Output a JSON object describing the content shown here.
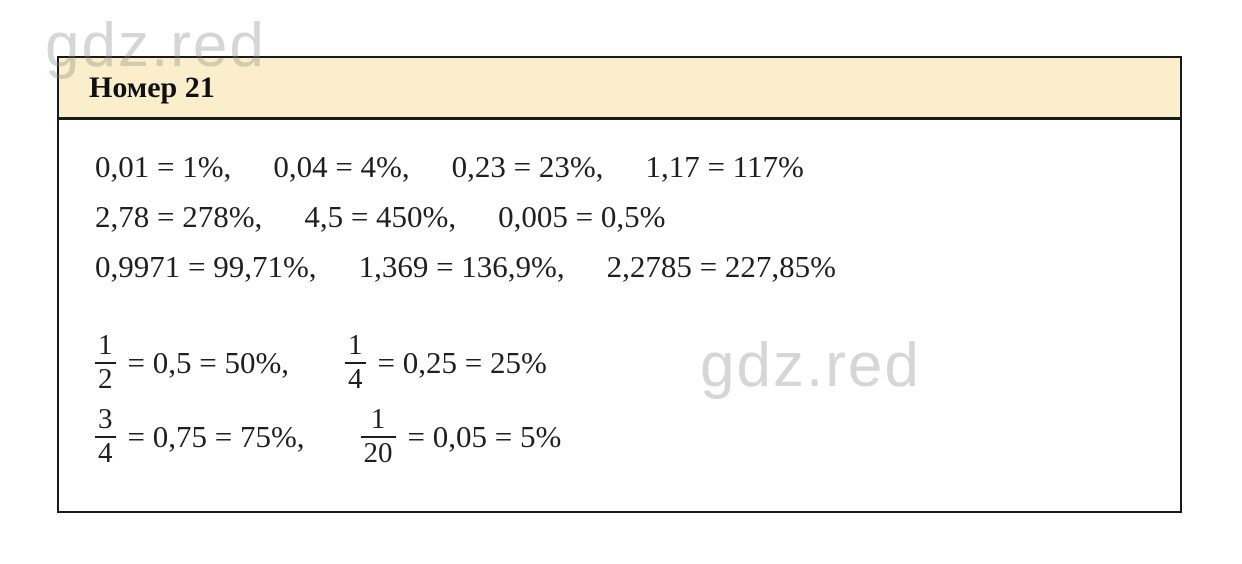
{
  "watermark": {
    "text": "gdz.red",
    "color": "#d6d6d6"
  },
  "card": {
    "header": {
      "title": "Номер 21",
      "background": "#fbeecb"
    },
    "lines": [
      [
        "0,01 = 1%,",
        "0,04 = 4%,",
        "0,23 = 23%,",
        "1,17 = 117%"
      ],
      [
        "2,78 = 278%,",
        "4,5 = 450%,",
        "0,005 = 0,5%"
      ],
      [
        "0,9971 = 99,71%,",
        "1,369 = 136,9%,",
        "2,2785 = 227,85%"
      ]
    ],
    "fraction_lines": [
      [
        {
          "numerator": "1",
          "denominator": "2",
          "rest": "= 0,5 = 50%,"
        },
        {
          "numerator": "1",
          "denominator": "4",
          "rest": "= 0,25 = 25%"
        }
      ],
      [
        {
          "numerator": "3",
          "denominator": "4",
          "rest": "= 0,75 = 75%,"
        },
        {
          "numerator": "1",
          "denominator": "20",
          "rest": "= 0,05 = 5%"
        }
      ]
    ]
  }
}
